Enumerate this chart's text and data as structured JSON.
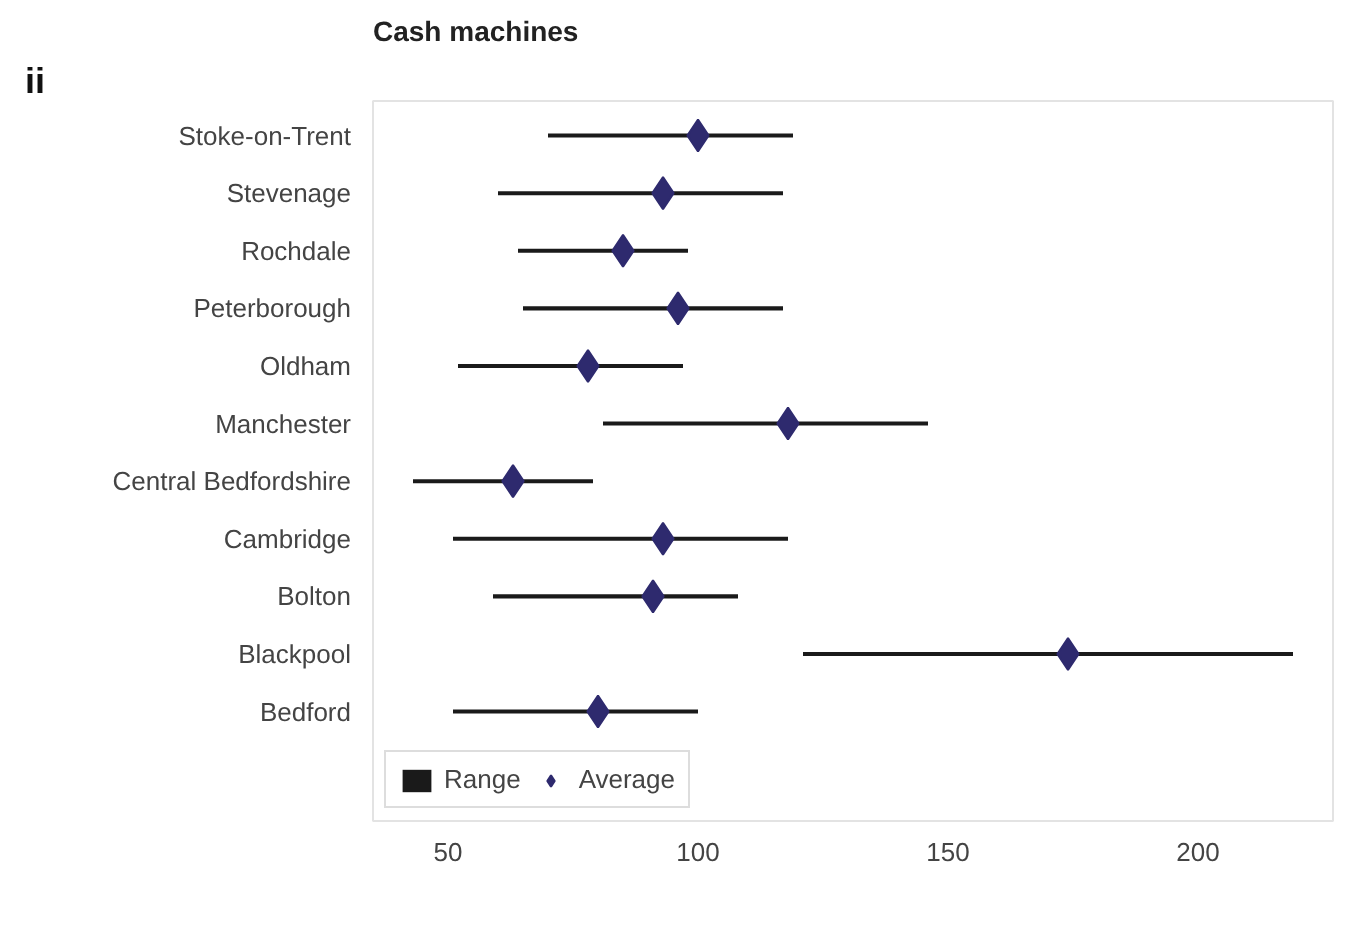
{
  "chart_data": {
    "type": "scatter",
    "title": "Cash machines",
    "annotations": [
      "ii"
    ],
    "categories": [
      "Stoke-on-Trent",
      "Stevenage",
      "Rochdale",
      "Peterborough",
      "Oldham",
      "Manchester",
      "Central Bedfordshire",
      "Cambridge",
      "Bolton",
      "Blackpool",
      "Bedford"
    ],
    "orientation": "horizontal",
    "xlim": [
      35,
      227
    ],
    "xticks": [
      50,
      100,
      150,
      200
    ],
    "grid": false,
    "legend": "bottom left",
    "series": [
      {
        "name": "Range",
        "type": "bar",
        "color": "#1a1a1a",
        "base": [
          70,
          60,
          64,
          65,
          52,
          81,
          43,
          51,
          59,
          121,
          51
        ],
        "values": [
          49,
          57,
          34,
          52,
          45,
          65,
          36,
          67,
          49,
          98,
          49
        ]
      },
      {
        "name": "Average",
        "marker": "diamond",
        "color": "#2e2a6e",
        "values": [
          100,
          93,
          85,
          96,
          78,
          118,
          63,
          93,
          91,
          174,
          80
        ]
      }
    ]
  }
}
